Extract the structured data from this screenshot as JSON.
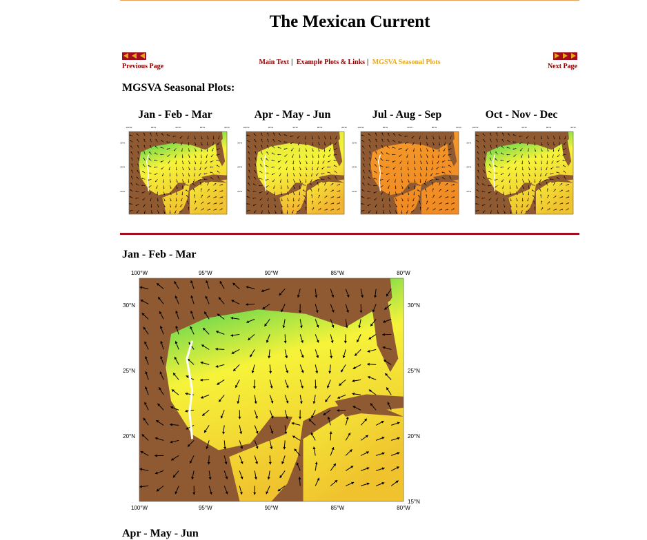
{
  "page": {
    "title": "The Mexican Current",
    "prev_label": "Previous Page",
    "next_label": "Next Page",
    "nav_links": [
      "Main Text",
      "Example Plots & Links",
      "MGSVA Seasonal Plots"
    ],
    "nav_separator": "|",
    "section_title": "MGSVA Seasonal Plots:",
    "thumbnails": [
      "Jan - Feb - Mar",
      "Apr - May - Jun",
      "Jul - Aug - Sep",
      "Oct - Nov - Dec"
    ],
    "big_map_label": "Jan - Feb - Mar",
    "next_section_label": "Apr - May - Jun"
  },
  "map_axes": {
    "lon_labels": [
      "100°W",
      "95°W",
      "90°W",
      "85°W",
      "80°W"
    ],
    "lat_labels": [
      "30°N",
      "25°N",
      "20°N",
      "15°N"
    ]
  },
  "colors": {
    "accent": "#8b0000",
    "current_link": "#e8a61b",
    "rule_red": "#a10f1f",
    "land": "#8f5a32",
    "sea_green": "#16c75a",
    "sea_yellow": "#f6f33a",
    "sea_orange": "#f59a2a"
  }
}
